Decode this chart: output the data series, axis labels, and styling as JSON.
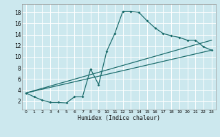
{
  "xlabel": "Humidex (Indice chaleur)",
  "ylabel": "",
  "background_color": "#cce8ee",
  "grid_color": "#ffffff",
  "line_color": "#1a6b6b",
  "xlim": [
    -0.5,
    23.5
  ],
  "ylim": [
    0.5,
    19.5
  ],
  "xticks": [
    0,
    1,
    2,
    3,
    4,
    5,
    6,
    7,
    8,
    9,
    10,
    11,
    12,
    13,
    14,
    15,
    16,
    17,
    18,
    19,
    20,
    21,
    22,
    23
  ],
  "yticks": [
    2,
    4,
    6,
    8,
    10,
    12,
    14,
    16,
    18
  ],
  "line1_x": [
    0,
    1,
    2,
    3,
    4,
    5,
    6,
    7,
    8,
    9,
    10,
    11,
    12,
    13,
    14,
    15,
    16,
    17,
    18,
    19,
    20,
    21,
    22,
    23
  ],
  "line1_y": [
    3.5,
    2.8,
    2.2,
    1.8,
    1.8,
    1.7,
    2.8,
    2.8,
    7.8,
    5.0,
    11.0,
    14.2,
    18.2,
    18.2,
    18.0,
    16.5,
    15.2,
    14.2,
    13.8,
    13.5,
    13.0,
    13.0,
    11.8,
    11.2
  ],
  "line2_x": [
    0,
    23
  ],
  "line2_y": [
    3.5,
    11.2
  ],
  "line3_x": [
    0,
    23
  ],
  "line3_y": [
    3.5,
    13.0
  ]
}
